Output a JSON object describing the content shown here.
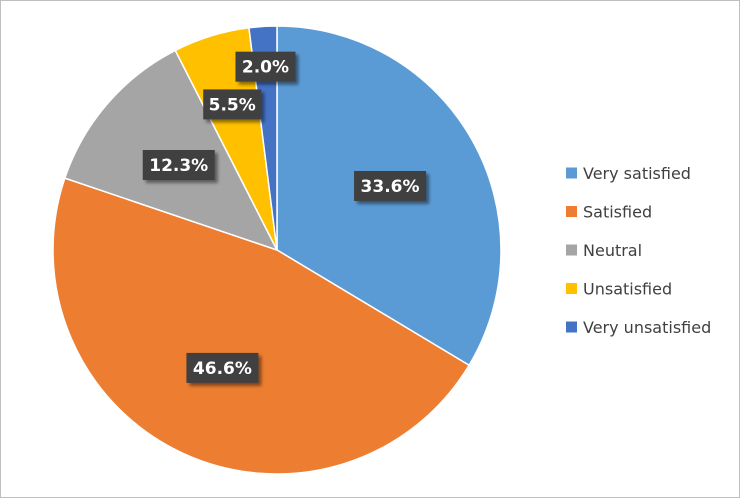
{
  "chart_data": {
    "type": "pie",
    "title": "",
    "start_angle_deg": 0,
    "direction": "clockwise",
    "legend_position": "right",
    "categories": [
      "Very satisfied",
      "Satisfied",
      "Neutral",
      "Unsatisfied",
      "Very unsatisfied"
    ],
    "values": [
      33.6,
      46.6,
      12.3,
      5.5,
      2.0
    ],
    "labels": [
      "33.6%",
      "46.6%",
      "12.3%",
      "5.5%",
      "2.0%"
    ],
    "colors": [
      "#5b9bd5",
      "#ed7d31",
      "#a5a5a5",
      "#ffc000",
      "#4472c4"
    ],
    "data_label_style": "white bold text on dark callout box with shadow"
  }
}
